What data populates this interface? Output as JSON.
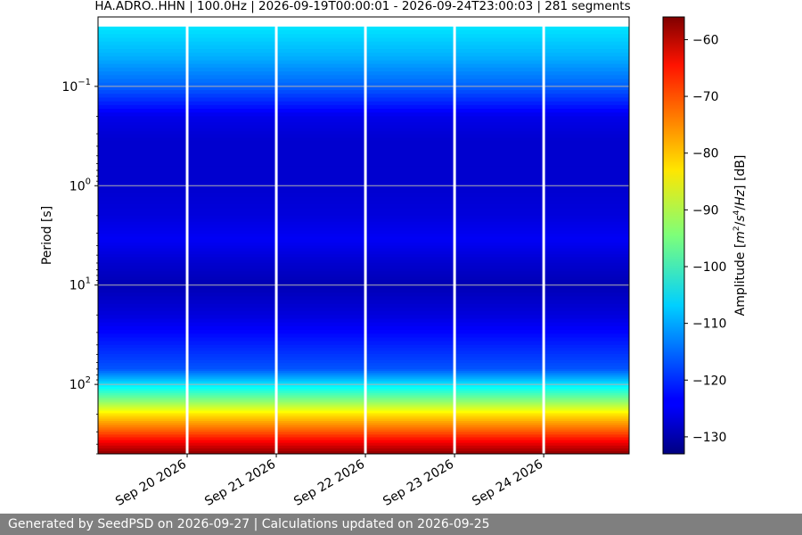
{
  "chart_data": {
    "type": "heatmap",
    "title": "HA.ADRO..HHN | 100.0Hz | 2026-09-19T00:00:01 - 2026-09-24T23:00:03 | 281 segments",
    "xlabel": "",
    "ylabel": "Period [s]",
    "x_ticks": [
      "Sep 20 2026",
      "Sep 21 2026",
      "Sep 22 2026",
      "Sep 23 2026",
      "Sep 24 2026"
    ],
    "x_range": [
      "2026-09-19T00:00:01",
      "2026-09-24T23:00:03"
    ],
    "y_scale": "log",
    "y_inverted": true,
    "y_range": [
      0.02,
      500
    ],
    "y_tick_values": [
      0.1,
      1,
      10,
      100
    ],
    "y_tick_labels": [
      "10",
      "10",
      "10",
      "10"
    ],
    "y_tick_exponents": [
      "−1",
      "0",
      "1",
      "2"
    ],
    "grid": true,
    "gaps": [
      "2026-09-20T00:00:00",
      "2026-09-21T00:00:00",
      "2026-09-22T00:00:00",
      "2026-09-23T00:00:00",
      "2026-09-24T00:00:00"
    ],
    "colorbar": {
      "label": "Amplitude [m²/s⁴/Hz] [dB]",
      "colormap": "jet",
      "range": [
        -133,
        -56
      ],
      "ticks": [
        -60,
        -70,
        -80,
        -90,
        -100,
        -110,
        -120,
        -130
      ]
    },
    "amplitude_profile": {
      "period_s": [
        0.025,
        0.05,
        0.1,
        0.2,
        0.35,
        0.6,
        1.0,
        2.0,
        3.5,
        6.0,
        10,
        20,
        40,
        70,
        100,
        150,
        200,
        300,
        500
      ],
      "amplitude_db": [
        -106,
        -110,
        -116,
        -125,
        -127,
        -127,
        -127,
        -126,
        -124,
        -127,
        -129,
        -126,
        -121,
        -117,
        -106,
        -93,
        -83,
        -72,
        -57
      ]
    }
  },
  "footer": {
    "text": "Generated by SeedPSD on 2026-09-27 | Calculations updated on 2026-09-25"
  }
}
